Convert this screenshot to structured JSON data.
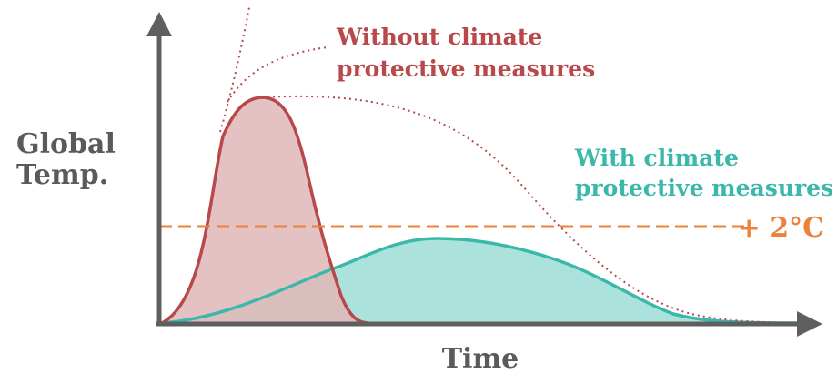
{
  "axes": {
    "y_label_line1": "Global",
    "y_label_line2": "Temp.",
    "x_label": "Time"
  },
  "without_measures": {
    "label_line1": "Without climate",
    "label_line2": "protective measures",
    "color": "#b8484a",
    "fill": "#e0b8b9"
  },
  "with_measures": {
    "label_line1": "With climate",
    "label_line2": "protective measures",
    "color": "#3bb8aa",
    "fill": "#ace2dc"
  },
  "threshold": {
    "label": "+ 2°C",
    "color": "#ec8239"
  },
  "axis_color": "#5f5f5f",
  "text_color": "#5a5a5a"
}
